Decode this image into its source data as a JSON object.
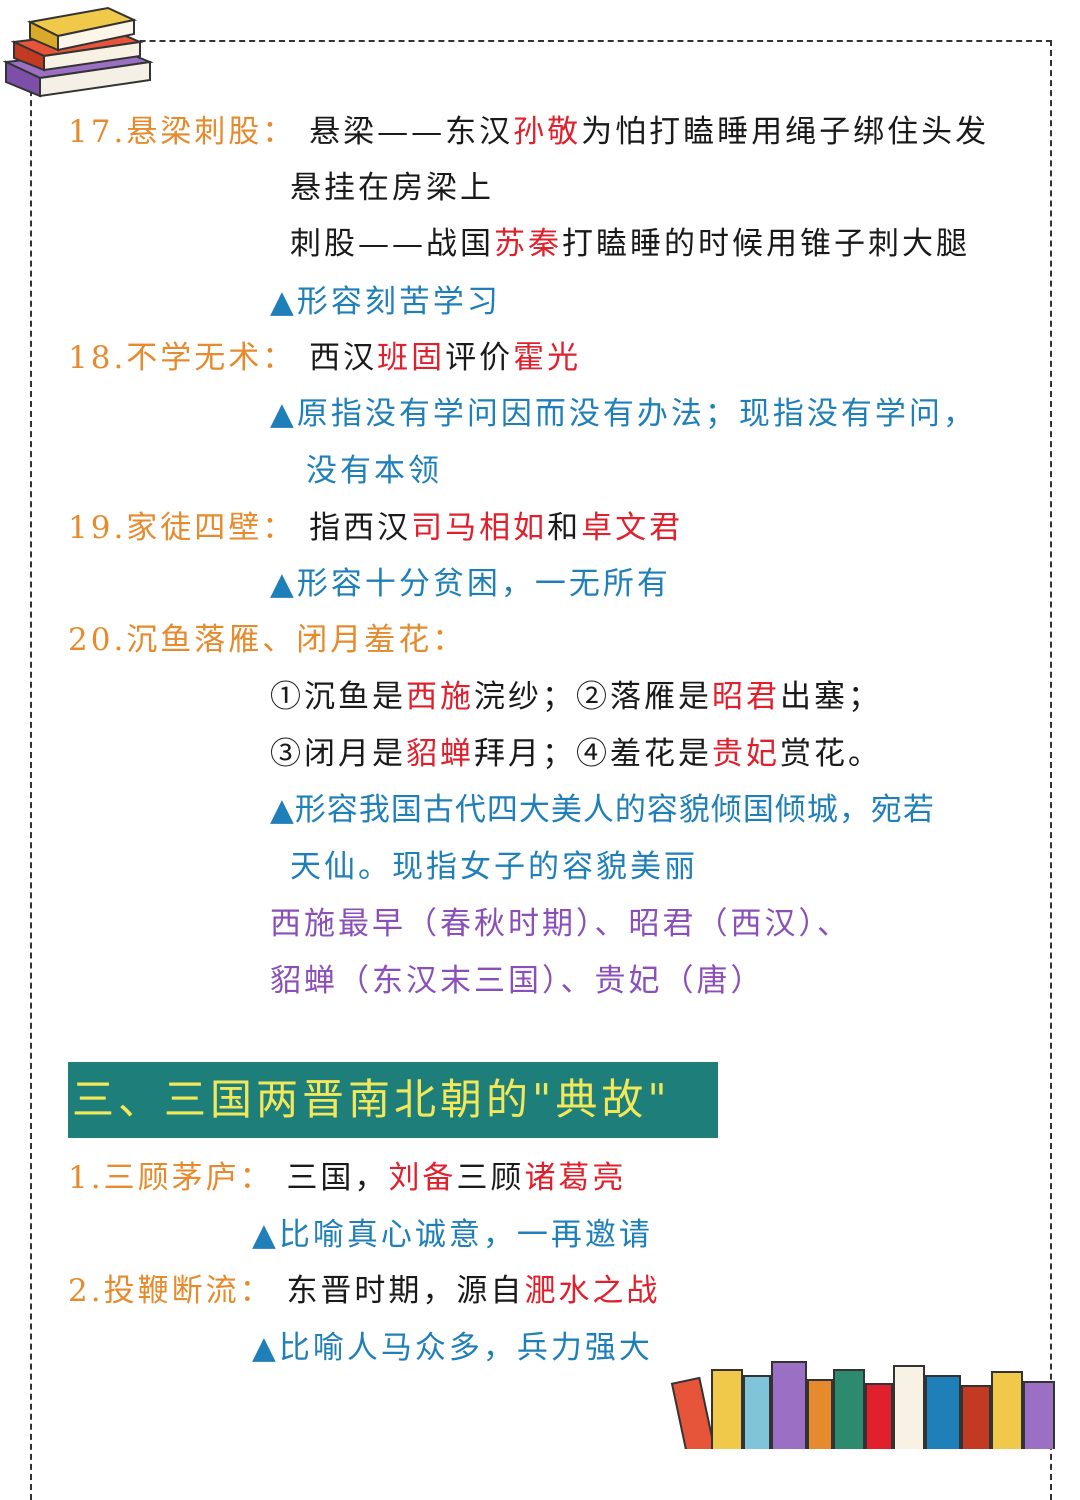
{
  "colors": {
    "orange": "#e68a2e",
    "red": "#e0202c",
    "blue": "#1f7fb8",
    "purple": "#8a4fb8",
    "banner_bg": "#1e7f7a",
    "banner_text": "#f2e85a"
  },
  "icons": {
    "top_left": "stack-of-books-icon",
    "bottom_right": "books-on-shelf-icon"
  },
  "i17": {
    "title": "17.悬梁刺股：",
    "l1a": "悬梁——东汉",
    "l1b": "孙敬",
    "l1c": "为怕打瞌睡用绳子绑住头发",
    "l2": "悬挂在房梁上",
    "l3a": "刺股——战国",
    "l3b": "苏秦",
    "l3c": "打瞌睡的时候用锥子刺大腿",
    "meaning": "▲形容刻苦学习"
  },
  "i18": {
    "title": "18.不学无术：",
    "l1a": "西汉",
    "l1b": "班固",
    "l1c": "评价",
    "l1d": "霍光",
    "meaning1": "▲原指没有学问因而没有办法；现指没有学问，",
    "meaning2": "没有本领"
  },
  "i19": {
    "title": "19.家徒四壁：",
    "l1a": "指西汉",
    "l1b": "司马相如",
    "l1c": "和",
    "l1d": "卓文君",
    "meaning": "▲形容十分贫困，一无所有"
  },
  "i20": {
    "title": "20.沉鱼落雁、闭月羞花：",
    "l1a": "①沉鱼是",
    "l1b": "西施",
    "l1c": "浣纱；②落雁是",
    "l1d": "昭君",
    "l1e": "出塞；",
    "l2a": "③闭月是",
    "l2b": "貂蝉",
    "l2c": "拜月；④羞花是",
    "l2d": "贵妃",
    "l2e": "赏花。",
    "meaning1": "▲形容我国古代四大美人的容貌倾国倾城，宛若",
    "meaning2": "天仙。现指女子的容貌美丽",
    "note1": "西施最早（春秋时期）、昭君（西汉）、",
    "note2": "貂蝉（东汉末三国）、贵妃（唐）"
  },
  "section3": {
    "banner": "三、三国两晋南北朝的\"典故\""
  },
  "s3i1": {
    "title": "1.三顾茅庐：",
    "l1a": "三国，",
    "l1b": "刘备",
    "l1c": "三顾",
    "l1d": "诸葛亮",
    "meaning": "▲比喻真心诚意，一再邀请"
  },
  "s3i2": {
    "title": "2.投鞭断流：",
    "l1a": "东晋时期，源自",
    "l1b": "淝水之战",
    "meaning": "▲比喻人马众多，兵力强大"
  }
}
